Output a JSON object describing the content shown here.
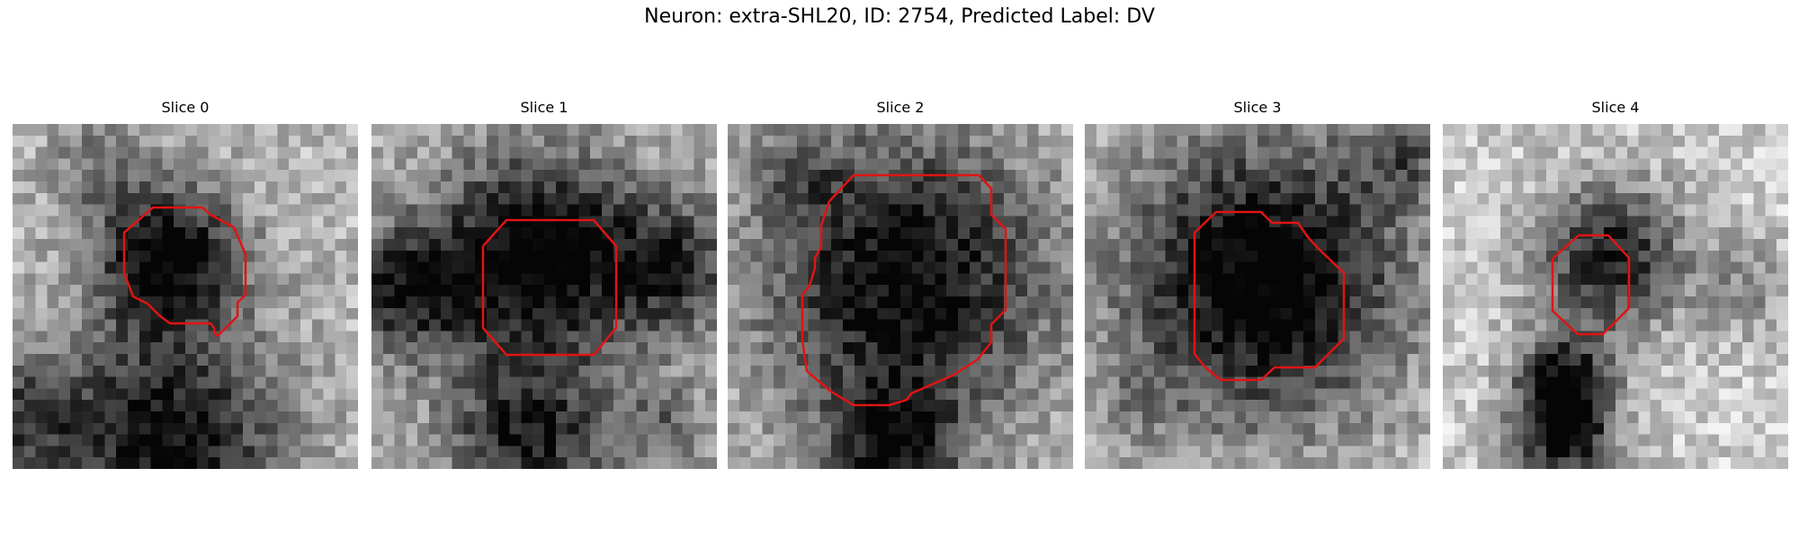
{
  "figure": {
    "title": "Neuron: extra-SHL20, ID: 2754, Predicted Label: DV"
  },
  "style": {
    "contour_color": "#e01414"
  },
  "slices": [
    {
      "label": "Slice 0"
    },
    {
      "label": "Slice 1"
    },
    {
      "label": "Slice 2"
    },
    {
      "label": "Slice 3"
    },
    {
      "label": "Slice 4"
    }
  ]
}
